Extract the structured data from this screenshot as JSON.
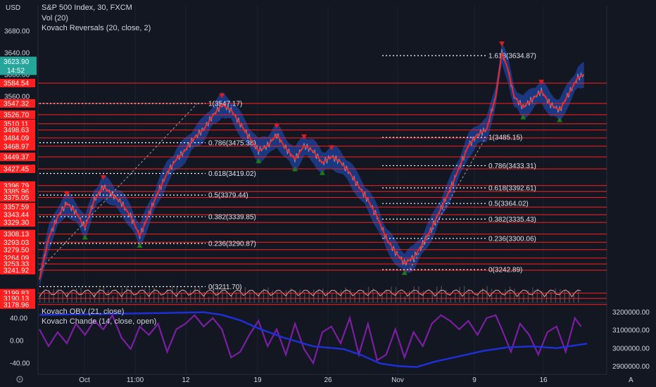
{
  "header": {
    "currency": "USD",
    "symbol_line": "S&P 500 Index, 30, FXCM",
    "vol_line": "Vol (20)",
    "indicator_line": "Kovach Reversals (20, close, 2)"
  },
  "lower_panel": {
    "obv_line": "Kovach OBV (21, close)",
    "chande_line": "Kovach Chande (14, close, open)"
  },
  "colors": {
    "background": "#131722",
    "grid": "#1e2230",
    "price_line": "#ef2828",
    "band": "#1c3d8f",
    "level_line": "#ff1f1f",
    "fib_line": "#ffffff",
    "obv": "#1f2fd6",
    "chande": "#7b1fa2",
    "up_marker": "#1b7a1b",
    "down_marker": "#e01919",
    "last_price_tag": "#26a69a",
    "level_tag": "#ff1f1f"
  },
  "chart_data": {
    "type": "line",
    "title": "S&P 500 Index, 30, FXCM",
    "x_ticks": [
      "Oct",
      "11:00",
      "12",
      "19",
      "26",
      "Nov",
      "9",
      "16"
    ],
    "price_axis": {
      "ticks": [
        3680.0,
        3640.0,
        3600.0,
        3560.0
      ],
      "range": [
        3160,
        3690
      ]
    },
    "last_price": "3623.90",
    "countdown": "14:52",
    "levels": [
      "3584.54",
      "3547.32",
      "3526.70",
      "3510.11",
      "3498.63",
      "3484.09",
      "3468.97",
      "3449.37",
      "3427.45",
      "3396.79",
      "3385.96",
      "3375.05",
      "3357.59",
      "3343.44",
      "3329.30",
      "3308.13",
      "3293.03",
      "3279.50",
      "3264.09",
      "3253.33",
      "3241.92",
      "3199.83",
      "3190.13",
      "3178.96"
    ],
    "fib_sets": [
      {
        "levels": [
          {
            "label": "1(3547.17)",
            "value": 3547.17
          },
          {
            "label": "0.786(3475.38)",
            "value": 3475.38
          },
          {
            "label": "0.618(3419.02)",
            "value": 3419.02
          },
          {
            "label": "0.5(3379.44)",
            "value": 3379.44
          },
          {
            "label": "0.382(3339.85)",
            "value": 3339.85
          },
          {
            "label": "0.236(3290.87)",
            "value": 3290.87
          },
          {
            "label": "0(3211.70)",
            "value": 3211.7
          }
        ]
      },
      {
        "levels": [
          {
            "label": "1.618(3634.87)",
            "value": 3634.87
          },
          {
            "label": "1(3485.15)",
            "value": 3485.15
          },
          {
            "label": "0.786(3433.31)",
            "value": 3433.31
          },
          {
            "label": "0.618(3392.61)",
            "value": 3392.61
          },
          {
            "label": "0.5(3364.02)",
            "value": 3364.02
          },
          {
            "label": "0.382(3335.43)",
            "value": 3335.43
          },
          {
            "label": "0.236(3300.06)",
            "value": 3300.06
          },
          {
            "label": "0(3242.89)",
            "value": 3242.89
          }
        ]
      }
    ],
    "price_series": [
      [
        0,
        3225
      ],
      [
        3,
        3300
      ],
      [
        6,
        3340
      ],
      [
        9,
        3365
      ],
      [
        12,
        3348
      ],
      [
        15,
        3320
      ],
      [
        18,
        3370
      ],
      [
        21,
        3395
      ],
      [
        24,
        3380
      ],
      [
        27,
        3365
      ],
      [
        30,
        3340
      ],
      [
        33,
        3305
      ],
      [
        36,
        3345
      ],
      [
        39,
        3385
      ],
      [
        42,
        3420
      ],
      [
        45,
        3445
      ],
      [
        48,
        3462
      ],
      [
        51,
        3485
      ],
      [
        54,
        3500
      ],
      [
        57,
        3525
      ],
      [
        60,
        3545
      ],
      [
        63,
        3535
      ],
      [
        66,
        3510
      ],
      [
        69,
        3485
      ],
      [
        72,
        3460
      ],
      [
        75,
        3470
      ],
      [
        78,
        3490
      ],
      [
        81,
        3465
      ],
      [
        84,
        3445
      ],
      [
        87,
        3470
      ],
      [
        90,
        3460
      ],
      [
        93,
        3438
      ],
      [
        96,
        3450
      ],
      [
        99,
        3440
      ],
      [
        102,
        3420
      ],
      [
        105,
        3395
      ],
      [
        108,
        3370
      ],
      [
        111,
        3340
      ],
      [
        114,
        3300
      ],
      [
        117,
        3275
      ],
      [
        120,
        3255
      ],
      [
        123,
        3265
      ],
      [
        126,
        3290
      ],
      [
        129,
        3320
      ],
      [
        132,
        3355
      ],
      [
        135,
        3390
      ],
      [
        138,
        3430
      ],
      [
        141,
        3470
      ],
      [
        144,
        3490
      ],
      [
        147,
        3500
      ],
      [
        150,
        3560
      ],
      [
        152,
        3640
      ],
      [
        154,
        3610
      ],
      [
        156,
        3560
      ],
      [
        159,
        3540
      ],
      [
        162,
        3555
      ],
      [
        165,
        3570
      ],
      [
        168,
        3545
      ],
      [
        171,
        3535
      ],
      [
        174,
        3565
      ],
      [
        177,
        3595
      ],
      [
        179,
        3600
      ]
    ],
    "obv_axis": {
      "ticks": [
        3200000.0,
        3100000.0,
        3000000.0,
        2900000.0
      ],
      "range": [
        2870000,
        3230000
      ]
    },
    "chande_axis": {
      "ticks": [
        40.0,
        0.0,
        -40.0
      ],
      "range": [
        -55,
        60
      ]
    },
    "obv_series": [
      [
        0,
        3185000
      ],
      [
        20,
        3190000
      ],
      [
        40,
        3195000
      ],
      [
        54,
        3200000
      ],
      [
        60,
        3185000
      ],
      [
        66,
        3155000
      ],
      [
        72,
        3110000
      ],
      [
        80,
        3060000
      ],
      [
        90,
        3010000
      ],
      [
        100,
        2995000
      ],
      [
        106,
        2960000
      ],
      [
        112,
        2915000
      ],
      [
        118,
        2900000
      ],
      [
        124,
        2895000
      ],
      [
        130,
        2925000
      ],
      [
        138,
        2955000
      ],
      [
        146,
        2985000
      ],
      [
        154,
        3005000
      ],
      [
        162,
        3010000
      ],
      [
        170,
        3000000
      ],
      [
        176,
        3015000
      ],
      [
        180,
        3025000
      ]
    ],
    "chande_series": [
      [
        0,
        20
      ],
      [
        3,
        -10
      ],
      [
        6,
        15
      ],
      [
        9,
        -5
      ],
      [
        12,
        30
      ],
      [
        15,
        10
      ],
      [
        18,
        35
      ],
      [
        21,
        20
      ],
      [
        24,
        45
      ],
      [
        27,
        5
      ],
      [
        30,
        -15
      ],
      [
        33,
        25
      ],
      [
        36,
        10
      ],
      [
        39,
        30
      ],
      [
        42,
        -20
      ],
      [
        45,
        20
      ],
      [
        48,
        30
      ],
      [
        51,
        45
      ],
      [
        54,
        25
      ],
      [
        57,
        40
      ],
      [
        60,
        20
      ],
      [
        63,
        -30
      ],
      [
        66,
        -20
      ],
      [
        69,
        10
      ],
      [
        72,
        35
      ],
      [
        75,
        -10
      ],
      [
        78,
        20
      ],
      [
        81,
        -25
      ],
      [
        84,
        30
      ],
      [
        87,
        -15
      ],
      [
        90,
        -40
      ],
      [
        93,
        15
      ],
      [
        96,
        25
      ],
      [
        99,
        -5
      ],
      [
        102,
        40
      ],
      [
        105,
        -25
      ],
      [
        108,
        30
      ],
      [
        111,
        -35
      ],
      [
        114,
        -25
      ],
      [
        117,
        20
      ],
      [
        120,
        -30
      ],
      [
        123,
        15
      ],
      [
        126,
        -10
      ],
      [
        129,
        30
      ],
      [
        132,
        45
      ],
      [
        135,
        35
      ],
      [
        138,
        20
      ],
      [
        141,
        35
      ],
      [
        144,
        10
      ],
      [
        147,
        40
      ],
      [
        150,
        45
      ],
      [
        152,
        20
      ],
      [
        155,
        -20
      ],
      [
        158,
        30
      ],
      [
        161,
        10
      ],
      [
        164,
        -25
      ],
      [
        167,
        15
      ],
      [
        170,
        25
      ],
      [
        173,
        -20
      ],
      [
        176,
        40
      ],
      [
        178,
        25
      ]
    ]
  }
}
